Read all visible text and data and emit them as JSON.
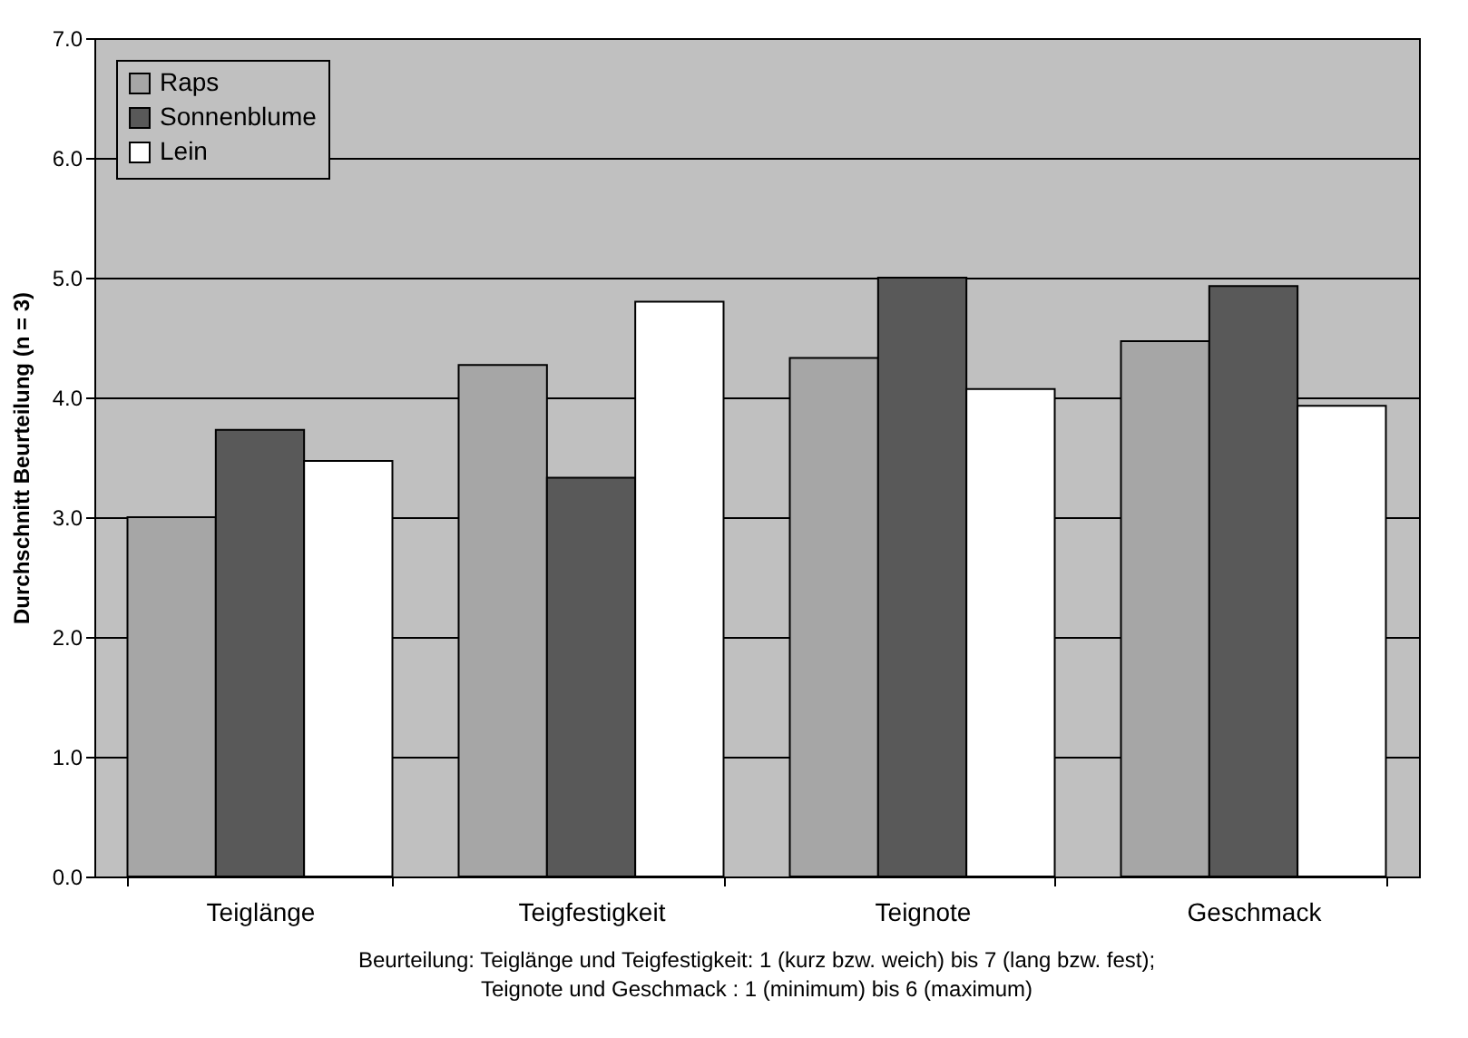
{
  "chart_data": {
    "type": "bar",
    "ylabel": "Durchschnitt Beurteilung (n = 3)",
    "categories": [
      "Teiglänge",
      "Teigfestigkeit",
      "Teignote",
      "Geschmack"
    ],
    "series": [
      {
        "name": "Raps",
        "color": "#a6a6a6",
        "values": [
          3.0,
          4.27,
          4.33,
          4.47
        ]
      },
      {
        "name": "Sonnenblume",
        "color": "#595959",
        "values": [
          3.73,
          3.33,
          5.0,
          4.93
        ]
      },
      {
        "name": "Lein",
        "color": "#ffffff",
        "values": [
          3.47,
          4.8,
          4.07,
          3.93
        ]
      }
    ],
    "ylim": [
      0,
      7
    ],
    "yticks": [
      {
        "value": 0,
        "label": "0.0"
      },
      {
        "value": 1,
        "label": "1.0"
      },
      {
        "value": 2,
        "label": "2.0"
      },
      {
        "value": 3,
        "label": "3.0"
      },
      {
        "value": 4,
        "label": "4.0"
      },
      {
        "value": 5,
        "label": "5.0"
      },
      {
        "value": 6,
        "label": "6.0"
      },
      {
        "value": 7,
        "label": "7.0"
      }
    ],
    "grid": "y",
    "legend": "top left",
    "annotations": [
      "Beurteilung: Teiglänge und Teigfestigkeit: 1  (kurz bzw. weich) bis 7 (lang bzw. fest);",
      "Teignote und Geschmack : 1  (minimum)  bis 6 (maximum)"
    ]
  }
}
